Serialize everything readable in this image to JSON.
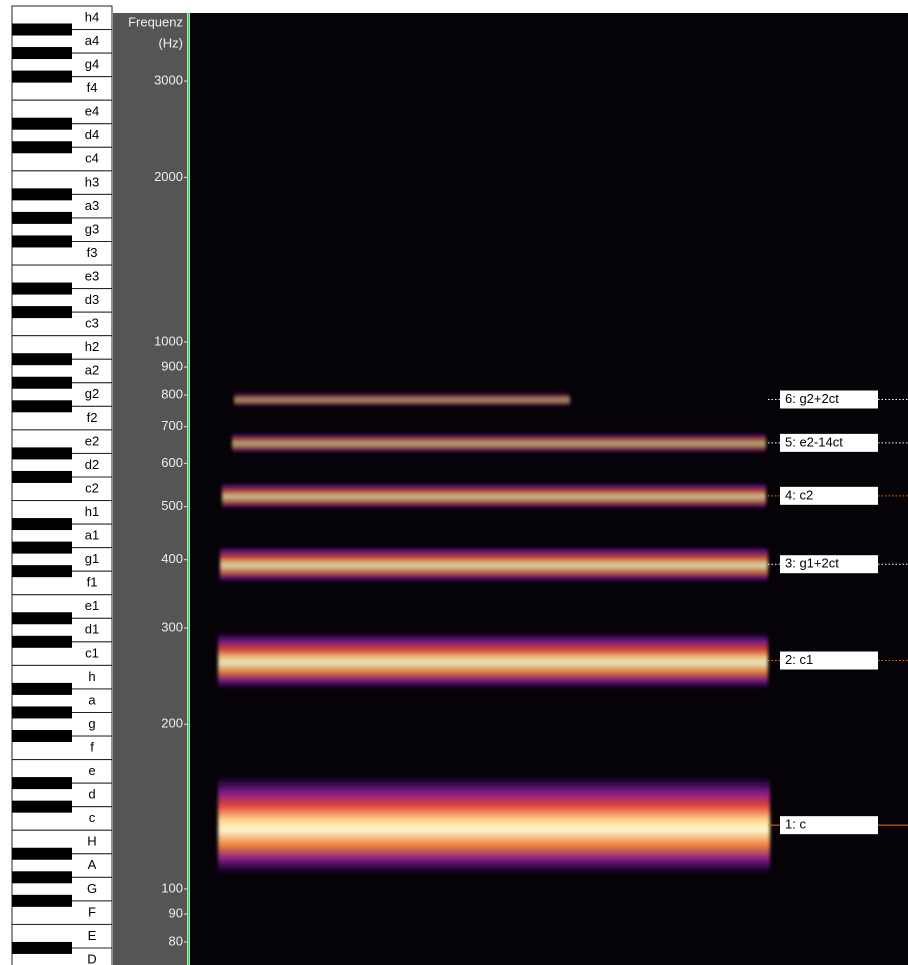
{
  "piano_keys": [
    "h4",
    "a4",
    "g4",
    "f4",
    "e4",
    "d4",
    "c4",
    "h3",
    "a3",
    "g3",
    "f3",
    "e3",
    "d3",
    "c3",
    "h2",
    "a2",
    "g2",
    "f2",
    "e2",
    "d2",
    "c2",
    "h1",
    "a1",
    "g1",
    "f1",
    "e1",
    "d1",
    "c1",
    "h",
    "a",
    "g",
    "f",
    "e",
    "d",
    "c",
    "H",
    "A",
    "G",
    "F",
    "E",
    "D"
  ],
  "frequency_axis": {
    "title": [
      "Frequenz",
      "(Hz)"
    ],
    "scale": "log",
    "ylim": [
      72.6,
      3995
    ],
    "yticks": [
      80,
      90,
      100,
      200,
      300,
      400,
      500,
      600,
      700,
      800,
      900,
      1000,
      2000,
      3000
    ]
  },
  "harmonics": [
    {
      "label": "1: c",
      "frequency": 130.8,
      "line_color": "#ff6a00",
      "line_style": "solid"
    },
    {
      "label": "2: c1",
      "frequency": 261.6,
      "line_color": "#ff6a00",
      "line_style": "dotted"
    },
    {
      "label": "3: g1+2ct",
      "frequency": 392.4,
      "line_color": "#ffffff",
      "line_style": "dotted"
    },
    {
      "label": "4: c2",
      "frequency": 523.3,
      "line_color": "#ff6a00",
      "line_style": "dotted"
    },
    {
      "label": "5: e2-14ct",
      "frequency": 654,
      "line_color": "#ffffff",
      "line_style": "dotted"
    },
    {
      "label": "6: g2+2ct",
      "frequency": 785,
      "line_color": "#ffffff",
      "line_style": "dotted"
    }
  ]
}
